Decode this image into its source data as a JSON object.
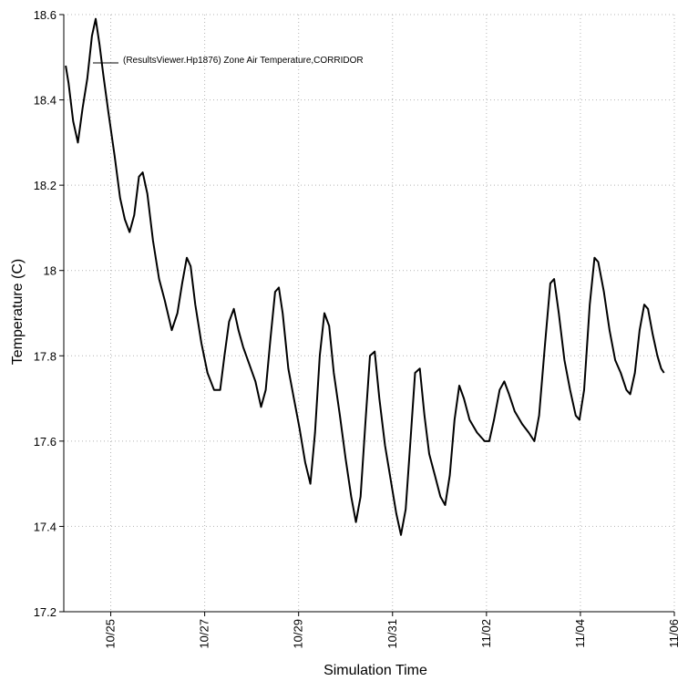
{
  "chart_data": {
    "type": "line",
    "xlabel": "Simulation Time",
    "ylabel": "Temperature (C)",
    "ylim": [
      17.2,
      18.6
    ],
    "yticks": [
      17.2,
      17.4,
      17.6,
      17.8,
      18,
      18.2,
      18.4,
      18.6
    ],
    "ytick_labels": [
      "17.2",
      "17.4",
      "17.6",
      "17.8",
      "18",
      "18.2",
      "18.4",
      "18.6"
    ],
    "xlim": [
      -1.0,
      12.0
    ],
    "xticks": [
      0,
      2,
      4,
      6,
      8,
      10,
      12
    ],
    "xtick_labels": [
      "10/25",
      "10/27",
      "10/29",
      "10/31",
      "11/02",
      "11/04",
      "11/06"
    ],
    "x_unit": "days from 10/25",
    "grid": true,
    "legend": "top-left",
    "series": [
      {
        "name": "(ResultsViewer.Hp1876) Zone Air Temperature,CORRIDOR",
        "color": "#000000",
        "points": [
          [
            -0.96,
            18.48
          ],
          [
            -0.9,
            18.44
          ],
          [
            -0.8,
            18.35
          ],
          [
            -0.7,
            18.3
          ],
          [
            -0.6,
            18.38
          ],
          [
            -0.5,
            18.45
          ],
          [
            -0.4,
            18.55
          ],
          [
            -0.32,
            18.59
          ],
          [
            -0.24,
            18.53
          ],
          [
            -0.16,
            18.46
          ],
          [
            -0.05,
            18.37
          ],
          [
            0.08,
            18.27
          ],
          [
            0.2,
            18.17
          ],
          [
            0.3,
            18.12
          ],
          [
            0.4,
            18.09
          ],
          [
            0.5,
            18.13
          ],
          [
            0.6,
            18.22
          ],
          [
            0.68,
            18.23
          ],
          [
            0.78,
            18.18
          ],
          [
            0.9,
            18.07
          ],
          [
            1.03,
            17.98
          ],
          [
            1.15,
            17.93
          ],
          [
            1.3,
            17.86
          ],
          [
            1.42,
            17.9
          ],
          [
            1.52,
            17.97
          ],
          [
            1.62,
            18.03
          ],
          [
            1.7,
            18.01
          ],
          [
            1.8,
            17.92
          ],
          [
            1.93,
            17.83
          ],
          [
            2.06,
            17.76
          ],
          [
            2.2,
            17.72
          ],
          [
            2.33,
            17.72
          ],
          [
            2.42,
            17.8
          ],
          [
            2.52,
            17.88
          ],
          [
            2.62,
            17.91
          ],
          [
            2.72,
            17.86
          ],
          [
            2.82,
            17.82
          ],
          [
            2.95,
            17.78
          ],
          [
            3.08,
            17.74
          ],
          [
            3.2,
            17.68
          ],
          [
            3.3,
            17.72
          ],
          [
            3.4,
            17.84
          ],
          [
            3.5,
            17.95
          ],
          [
            3.58,
            17.96
          ],
          [
            3.66,
            17.9
          ],
          [
            3.78,
            17.77
          ],
          [
            3.9,
            17.7
          ],
          [
            4.02,
            17.63
          ],
          [
            4.14,
            17.55
          ],
          [
            4.25,
            17.5
          ],
          [
            4.35,
            17.62
          ],
          [
            4.45,
            17.8
          ],
          [
            4.55,
            17.9
          ],
          [
            4.65,
            17.87
          ],
          [
            4.75,
            17.76
          ],
          [
            4.88,
            17.66
          ],
          [
            5.0,
            17.56
          ],
          [
            5.12,
            17.47
          ],
          [
            5.22,
            17.41
          ],
          [
            5.32,
            17.47
          ],
          [
            5.42,
            17.64
          ],
          [
            5.52,
            17.8
          ],
          [
            5.62,
            17.81
          ],
          [
            5.72,
            17.7
          ],
          [
            5.84,
            17.59
          ],
          [
            5.96,
            17.51
          ],
          [
            6.08,
            17.43
          ],
          [
            6.18,
            17.38
          ],
          [
            6.28,
            17.44
          ],
          [
            6.38,
            17.6
          ],
          [
            6.48,
            17.76
          ],
          [
            6.58,
            17.77
          ],
          [
            6.68,
            17.66
          ],
          [
            6.78,
            17.57
          ],
          [
            6.9,
            17.52
          ],
          [
            7.02,
            17.47
          ],
          [
            7.12,
            17.45
          ],
          [
            7.22,
            17.52
          ],
          [
            7.32,
            17.65
          ],
          [
            7.42,
            17.73
          ],
          [
            7.52,
            17.7
          ],
          [
            7.64,
            17.65
          ],
          [
            7.8,
            17.62
          ],
          [
            7.96,
            17.6
          ],
          [
            8.06,
            17.6
          ],
          [
            8.16,
            17.65
          ],
          [
            8.28,
            17.72
          ],
          [
            8.38,
            17.74
          ],
          [
            8.48,
            17.71
          ],
          [
            8.6,
            17.67
          ],
          [
            8.76,
            17.64
          ],
          [
            8.9,
            17.62
          ],
          [
            9.02,
            17.6
          ],
          [
            9.12,
            17.66
          ],
          [
            9.24,
            17.82
          ],
          [
            9.36,
            17.97
          ],
          [
            9.44,
            17.98
          ],
          [
            9.54,
            17.9
          ],
          [
            9.66,
            17.79
          ],
          [
            9.78,
            17.72
          ],
          [
            9.9,
            17.66
          ],
          [
            9.98,
            17.65
          ],
          [
            10.08,
            17.72
          ],
          [
            10.2,
            17.92
          ],
          [
            10.3,
            18.03
          ],
          [
            10.38,
            18.02
          ],
          [
            10.5,
            17.95
          ],
          [
            10.62,
            17.86
          ],
          [
            10.74,
            17.79
          ],
          [
            10.86,
            17.76
          ],
          [
            10.98,
            17.72
          ],
          [
            11.06,
            17.71
          ],
          [
            11.16,
            17.76
          ],
          [
            11.26,
            17.86
          ],
          [
            11.36,
            17.92
          ],
          [
            11.44,
            17.91
          ],
          [
            11.54,
            17.85
          ],
          [
            11.64,
            17.8
          ],
          [
            11.72,
            17.77
          ],
          [
            11.78,
            17.76
          ]
        ]
      }
    ]
  }
}
